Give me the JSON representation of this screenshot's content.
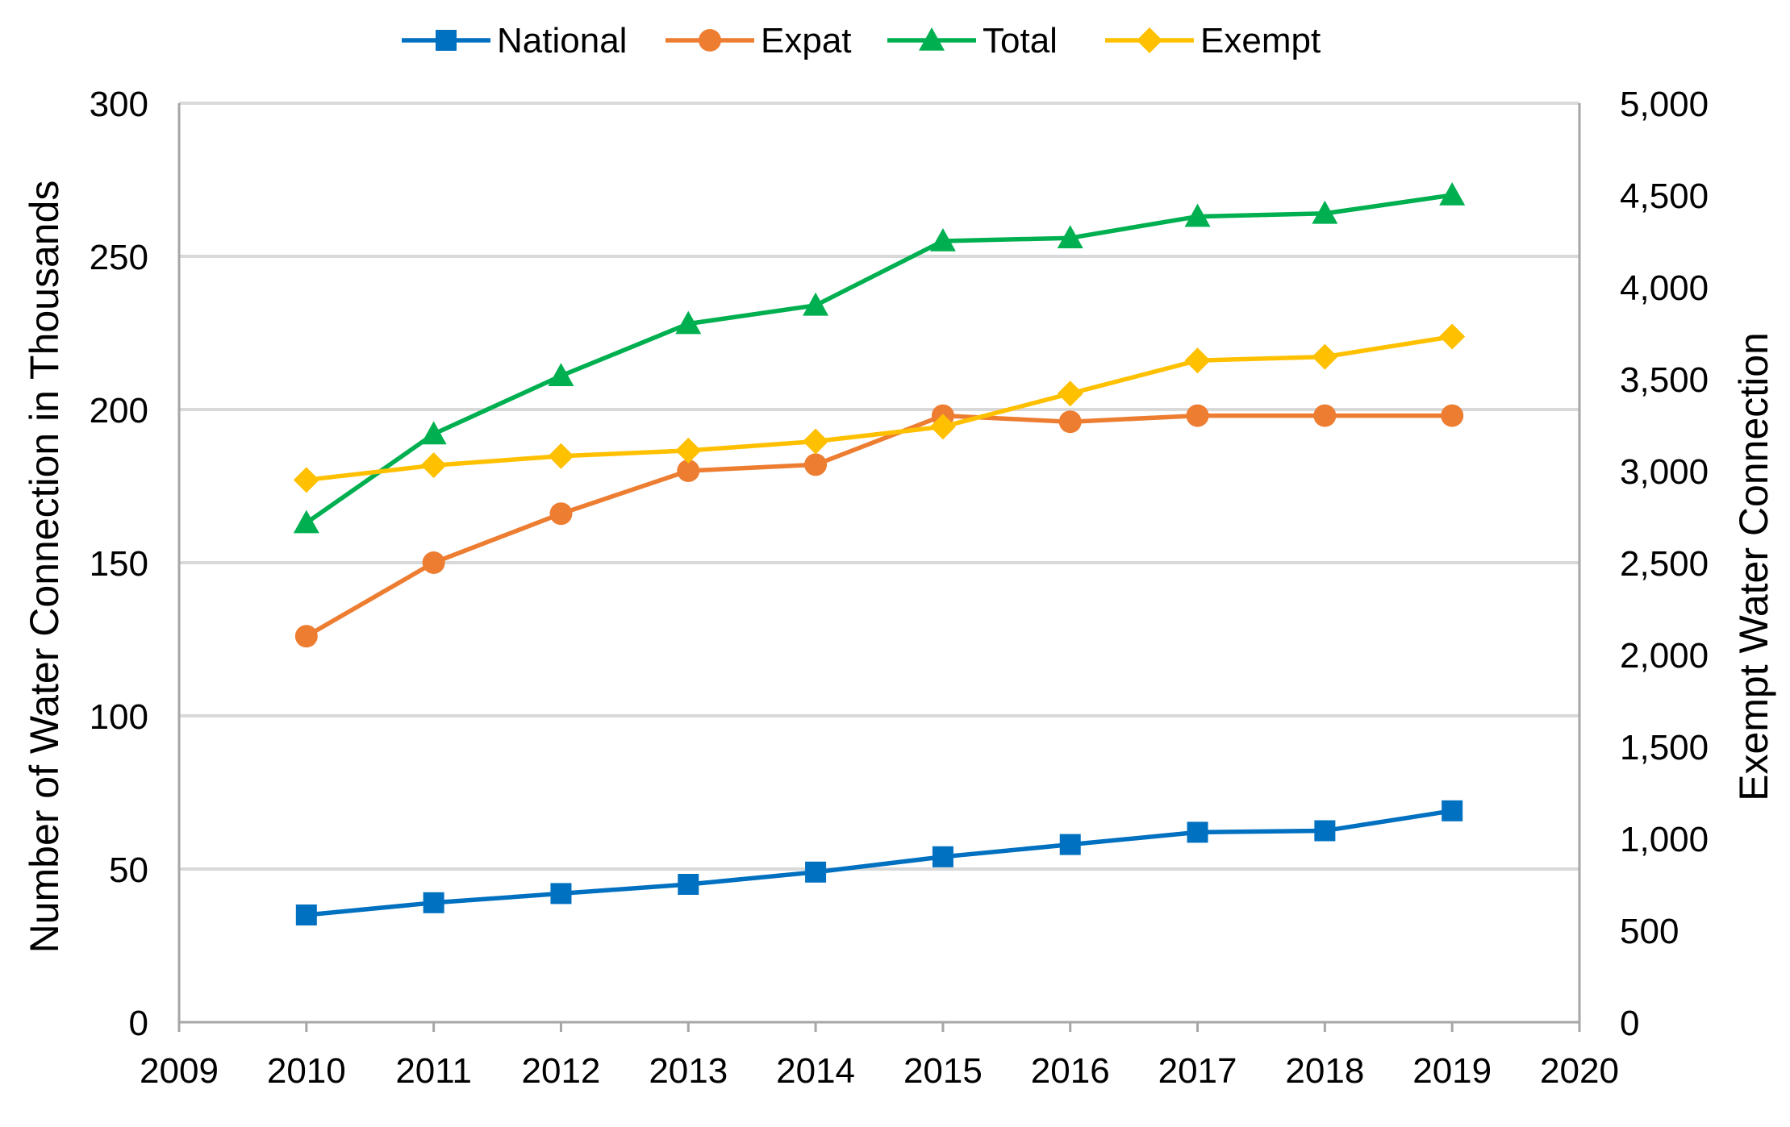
{
  "chart_data": {
    "type": "line",
    "title": "",
    "xlabel": "",
    "ylabel": "Number of Water Connection in Thousands",
    "y2label": "Exempt Water Connection",
    "xlim": [
      2009,
      2020
    ],
    "ylim": [
      0,
      300
    ],
    "y2lim": [
      0,
      5000
    ],
    "x_ticks": [
      "2009",
      "2010",
      "2011",
      "2012",
      "2013",
      "2014",
      "2015",
      "2016",
      "2017",
      "2018",
      "2019",
      "2020"
    ],
    "y_ticks": [
      "0",
      "50",
      "100",
      "150",
      "200",
      "250",
      "300"
    ],
    "y2_ticks": [
      "0",
      "500",
      "1,000",
      "1,500",
      "2,000",
      "2,500",
      "3,000",
      "3,500",
      "4,000",
      "4,500",
      "5,000"
    ],
    "x": [
      2010,
      2011,
      2012,
      2013,
      2014,
      2015,
      2016,
      2017,
      2018,
      2019
    ],
    "grid": true,
    "legend_position": "top-center",
    "series": [
      {
        "name": "National",
        "axis": "left",
        "marker": "square",
        "color": "#0070c0",
        "values": [
          35,
          39,
          42,
          45,
          49,
          54,
          58,
          62,
          62.5,
          69
        ]
      },
      {
        "name": "Expat",
        "axis": "left",
        "marker": "circle",
        "color": "#ed7d31",
        "values": [
          126,
          150,
          166,
          180,
          182,
          198,
          196,
          198,
          198,
          198
        ]
      },
      {
        "name": "Total",
        "axis": "left",
        "marker": "triangle",
        "color": "#00b050",
        "values": [
          163,
          192,
          211,
          228,
          234,
          255,
          256,
          263,
          264,
          270
        ]
      },
      {
        "name": "Exempt",
        "axis": "right",
        "marker": "diamond",
        "color": "#ffc000",
        "values": [
          2950,
          3030,
          3080,
          3110,
          3160,
          3240,
          3420,
          3600,
          3620,
          3730
        ]
      }
    ]
  }
}
